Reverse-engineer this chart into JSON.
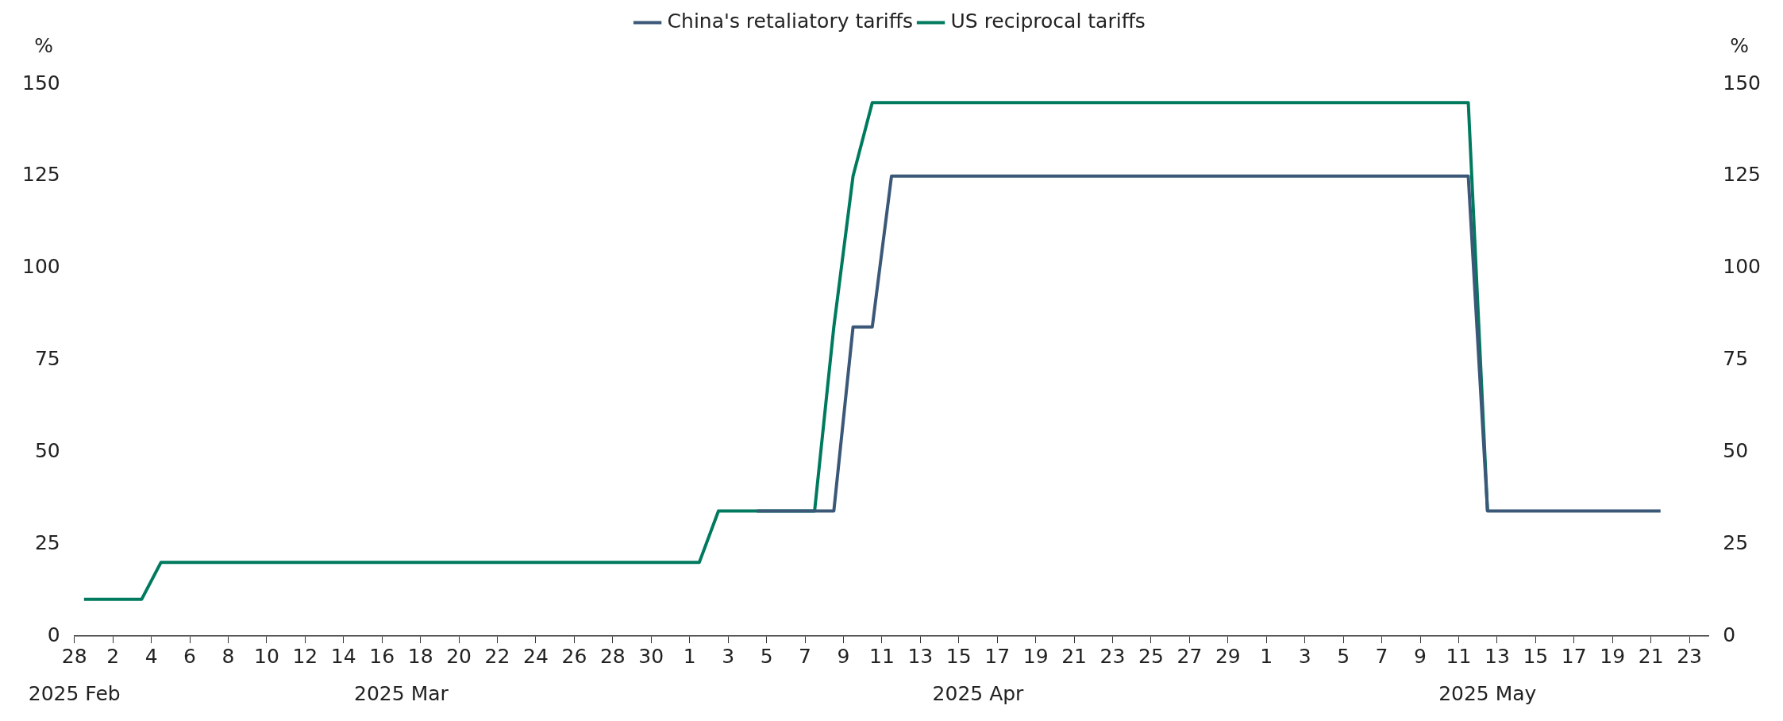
{
  "chart_data": {
    "type": "line",
    "ylabel": "%",
    "y2label": "%",
    "series": [
      {
        "name": "China's retaliatory tariffs",
        "color": "#3b5878",
        "x": [
          "2025-04-04T12:00",
          "2025-04-08T12:00",
          "2025-04-09T12:00",
          "2025-04-10T12:00",
          "2025-04-11T12:00",
          "2025-05-11T12:00",
          "2025-05-12T12:00",
          "2025-05-21T12:00"
        ],
        "values": [
          34,
          34,
          84,
          84,
          125,
          125,
          34,
          34
        ]
      },
      {
        "name": "US reciprocal tariffs",
        "color": "#007a5e",
        "x": [
          "2025-02-28T12:00",
          "2025-03-03T12:00",
          "2025-03-04T12:00",
          "2025-04-01T12:00",
          "2025-04-02T12:00",
          "2025-04-07T12:00",
          "2025-04-08T12:00",
          "2025-04-09T12:00",
          "2025-04-10T12:00",
          "2025-05-11T12:00",
          "2025-05-12T12:00"
        ],
        "values": [
          10,
          10,
          20,
          20,
          34,
          34,
          84,
          125,
          145,
          145,
          34
        ]
      }
    ],
    "xlim": [
      "2025-02-28",
      "2025-05-24"
    ],
    "xticks": [
      {
        "value": "2025-02-28",
        "label": "28"
      },
      {
        "value": "2025-03-02",
        "label": "2"
      },
      {
        "value": "2025-03-04",
        "label": "4"
      },
      {
        "value": "2025-03-06",
        "label": "6"
      },
      {
        "value": "2025-03-08",
        "label": "8"
      },
      {
        "value": "2025-03-10",
        "label": "10"
      },
      {
        "value": "2025-03-12",
        "label": "12"
      },
      {
        "value": "2025-03-14",
        "label": "14"
      },
      {
        "value": "2025-03-16",
        "label": "16"
      },
      {
        "value": "2025-03-18",
        "label": "18"
      },
      {
        "value": "2025-03-20",
        "label": "20"
      },
      {
        "value": "2025-03-22",
        "label": "22"
      },
      {
        "value": "2025-03-24",
        "label": "24"
      },
      {
        "value": "2025-03-26",
        "label": "26"
      },
      {
        "value": "2025-03-28",
        "label": "28"
      },
      {
        "value": "2025-03-30",
        "label": "30"
      },
      {
        "value": "2025-04-01",
        "label": "1"
      },
      {
        "value": "2025-04-03",
        "label": "3"
      },
      {
        "value": "2025-04-05",
        "label": "5"
      },
      {
        "value": "2025-04-07",
        "label": "7"
      },
      {
        "value": "2025-04-09",
        "label": "9"
      },
      {
        "value": "2025-04-11",
        "label": "11"
      },
      {
        "value": "2025-04-13",
        "label": "13"
      },
      {
        "value": "2025-04-15",
        "label": "15"
      },
      {
        "value": "2025-04-17",
        "label": "17"
      },
      {
        "value": "2025-04-19",
        "label": "19"
      },
      {
        "value": "2025-04-21",
        "label": "21"
      },
      {
        "value": "2025-04-23",
        "label": "23"
      },
      {
        "value": "2025-04-25",
        "label": "25"
      },
      {
        "value": "2025-04-27",
        "label": "27"
      },
      {
        "value": "2025-04-29",
        "label": "29"
      },
      {
        "value": "2025-05-01",
        "label": "1"
      },
      {
        "value": "2025-05-03",
        "label": "3"
      },
      {
        "value": "2025-05-05",
        "label": "5"
      },
      {
        "value": "2025-05-07",
        "label": "7"
      },
      {
        "value": "2025-05-09",
        "label": "9"
      },
      {
        "value": "2025-05-11",
        "label": "11"
      },
      {
        "value": "2025-05-13",
        "label": "13"
      },
      {
        "value": "2025-05-15",
        "label": "15"
      },
      {
        "value": "2025-05-17",
        "label": "17"
      },
      {
        "value": "2025-05-19",
        "label": "19"
      },
      {
        "value": "2025-05-21",
        "label": "21"
      },
      {
        "value": "2025-05-23",
        "label": "23"
      }
    ],
    "x2lim": [
      "2025-02-28",
      "2025-05-24"
    ],
    "x2ticks": [
      {
        "value": "2025-02-28",
        "label": "2025 Feb"
      },
      {
        "value": "2025-03-17",
        "label": "2025 Mar"
      },
      {
        "value": "2025-04-16",
        "label": "2025 Apr"
      },
      {
        "value": "2025-05-12T12:00",
        "label": "2025 May"
      }
    ],
    "ylim": [
      0,
      150
    ],
    "yticks": [
      0,
      25,
      50,
      75,
      100,
      125,
      150
    ],
    "y2lim": [
      0,
      150
    ],
    "y2ticks": [
      0,
      25,
      50,
      75,
      100,
      125,
      150
    ],
    "grid": false,
    "legend": "top",
    "marker": "none",
    "line_style": "solid"
  }
}
